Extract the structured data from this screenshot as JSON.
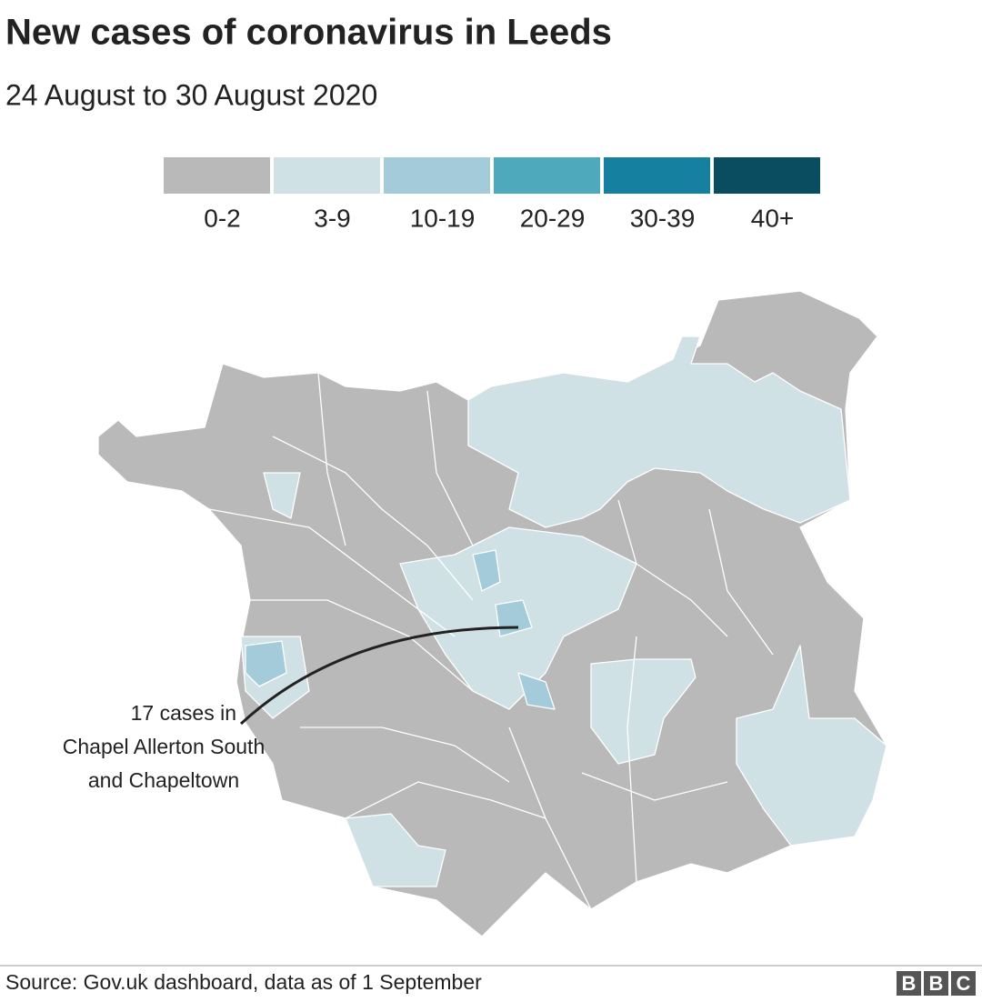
{
  "header": {
    "title": "New cases of coronavirus in Leeds",
    "subtitle": "24 August to 30 August 2020"
  },
  "legend": {
    "items": [
      {
        "label": "0-2",
        "color": "#b9b9b9"
      },
      {
        "label": "3-9",
        "color": "#d0e1e6"
      },
      {
        "label": "10-19",
        "color": "#a3cbd9"
      },
      {
        "label": "20-29",
        "color": "#4fa9bc"
      },
      {
        "label": "30-39",
        "color": "#1680a0"
      },
      {
        "label": "40+",
        "color": "#0a4c60"
      }
    ]
  },
  "annotation": {
    "lines": [
      "17 cases in",
      "Chapel Allerton South",
      "and Chapeltown"
    ]
  },
  "footer": {
    "source": "Source: Gov.uk dashboard, data as of 1 September",
    "logo": [
      "B",
      "B",
      "C"
    ]
  }
}
